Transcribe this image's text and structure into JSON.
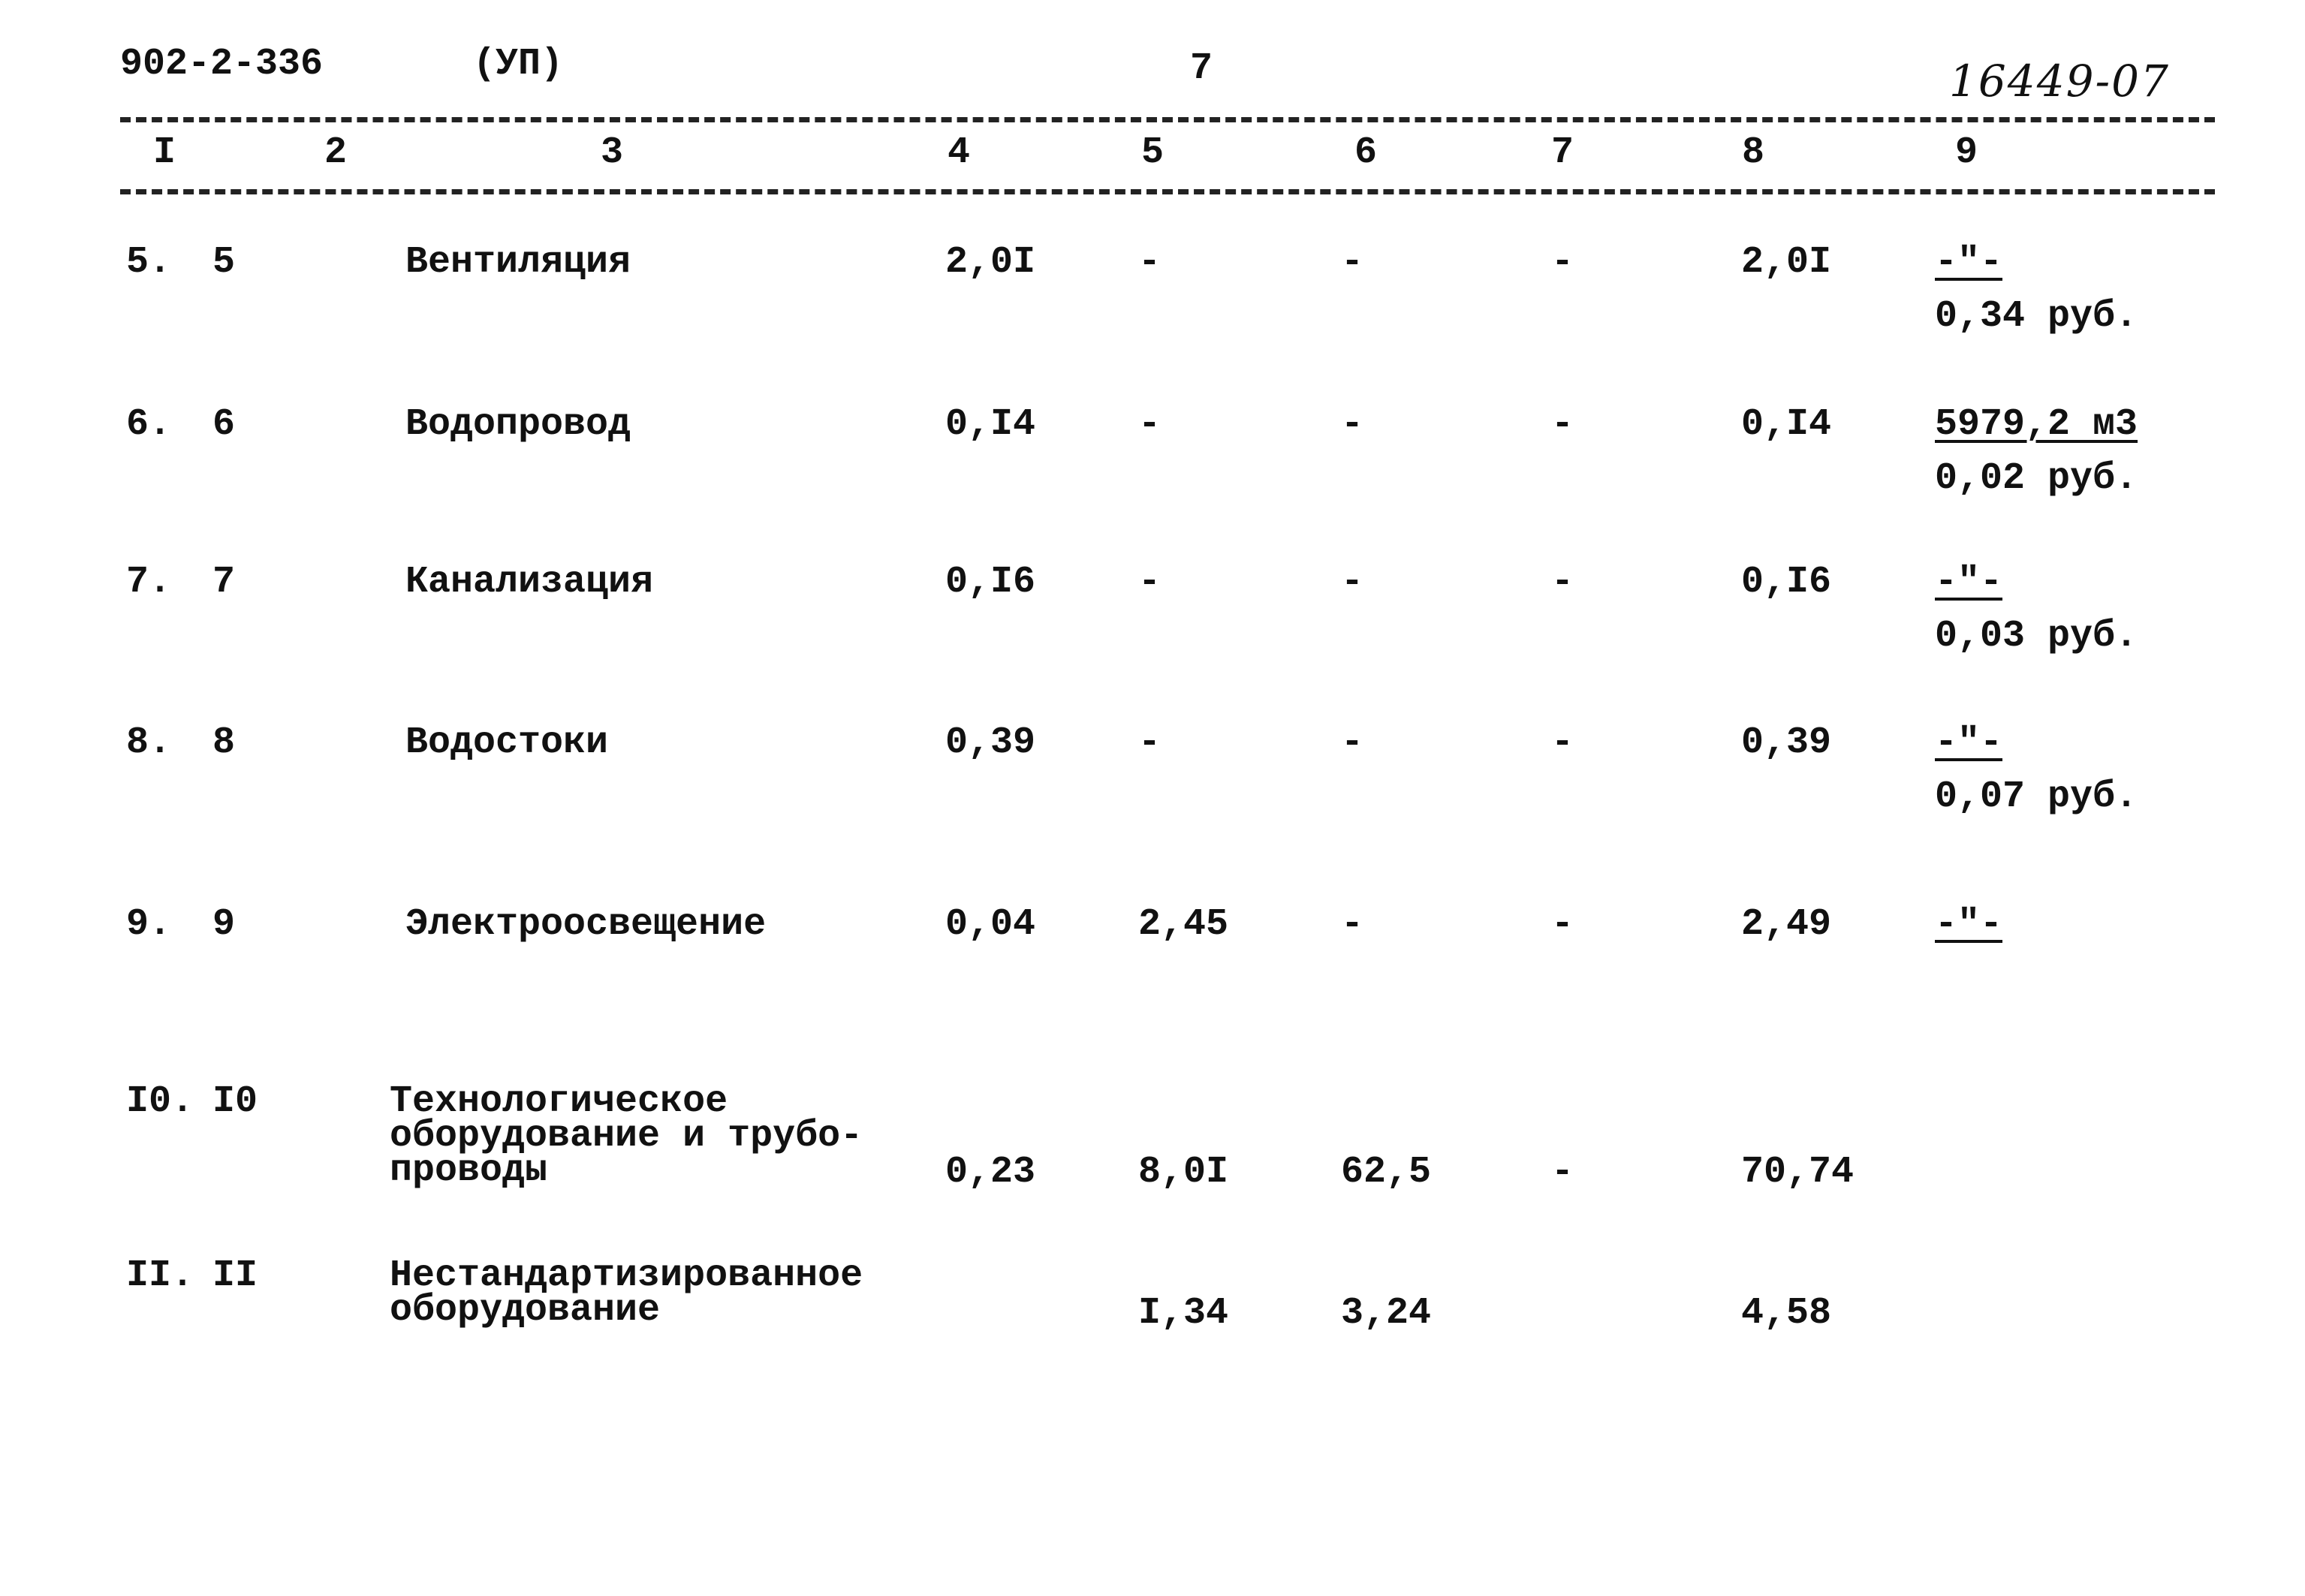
{
  "header": {
    "code": "902-2-336",
    "mark": "(УП)",
    "page": "7",
    "archive_number": "16449-07"
  },
  "table": {
    "columns": [
      "I",
      "2",
      "3",
      "4",
      "5",
      "6",
      "7",
      "8",
      "9"
    ],
    "rows": [
      {
        "num": "5.",
        "code": "5",
        "name": [
          "Вентиляция"
        ],
        "c4": "2,0I",
        "c5": "-",
        "c6": "-",
        "c7": "-",
        "c8": "2,0I",
        "c9": {
          "top": "-\"-",
          "bottom": "0,34 руб."
        }
      },
      {
        "num": "6.",
        "code": "6",
        "name": [
          "Водопровод"
        ],
        "c4": "0,I4",
        "c5": "-",
        "c6": "-",
        "c7": "-",
        "c8": "0,I4",
        "c9": {
          "top": "5979,2 м3",
          "bottom": "0,02 руб."
        }
      },
      {
        "num": "7.",
        "code": "7",
        "name": [
          "Канализация"
        ],
        "c4": "0,I6",
        "c5": "-",
        "c6": "-",
        "c7": "-",
        "c8": "0,I6",
        "c9": {
          "top": "-\"-",
          "bottom": "0,03 руб."
        }
      },
      {
        "num": "8.",
        "code": "8",
        "name": [
          "Водостоки"
        ],
        "c4": "0,39",
        "c5": "-",
        "c6": "-",
        "c7": "-",
        "c8": "0,39",
        "c9": {
          "top": "-\"-",
          "bottom": "0,07 руб."
        }
      },
      {
        "num": "9.",
        "code": "9",
        "name": [
          "Электроосвещение"
        ],
        "c4": "0,04",
        "c5": "2,45",
        "c6": "-",
        "c7": "-",
        "c8": "2,49",
        "c9": {
          "top": "-\"-"
        }
      },
      {
        "num": "I0.",
        "code": "I0",
        "name": [
          "Технологическое",
          "оборудование и трубо-",
          "проводы"
        ],
        "c4": "0,23",
        "c5": "8,0I",
        "c6": "62,5",
        "c7": "-",
        "c8": "70,74"
      },
      {
        "num": "II.",
        "code": "II",
        "name": [
          "Нестандартизированное",
          "оборудование"
        ],
        "c5": "I,34",
        "c6": "3,24",
        "c8": "4,58"
      }
    ]
  }
}
